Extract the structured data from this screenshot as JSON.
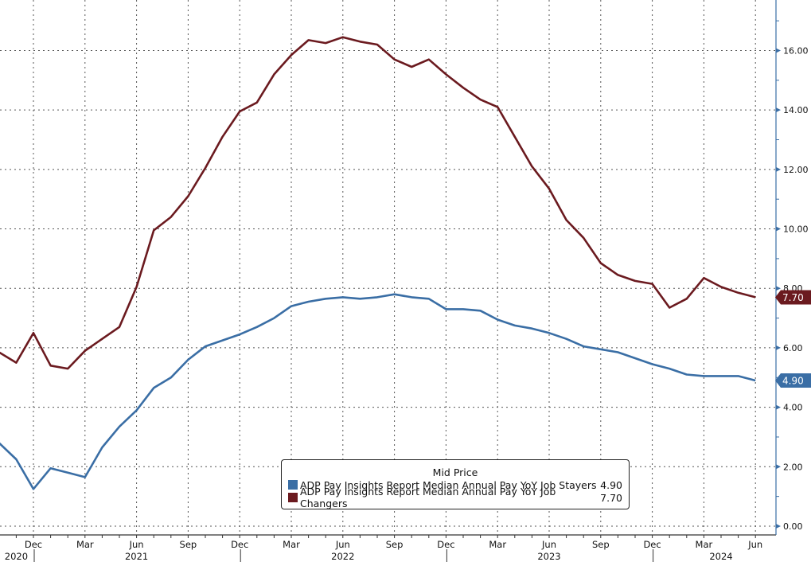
{
  "chart_data": {
    "type": "line",
    "title": "",
    "xlabel": "",
    "ylabel": "",
    "ylim": [
      0,
      17.7
    ],
    "y_ticks": [
      "0.00",
      "2.00",
      "4.00",
      "6.00",
      "8.00",
      "10.00",
      "12.00",
      "14.00",
      "16.00"
    ],
    "y_axis_side": "right",
    "grid": true,
    "x": [
      "2020-10",
      "2020-11",
      "2020-12",
      "2021-01",
      "2021-02",
      "2021-03",
      "2021-04",
      "2021-05",
      "2021-06",
      "2021-07",
      "2021-08",
      "2021-09",
      "2021-10",
      "2021-11",
      "2021-12",
      "2022-01",
      "2022-02",
      "2022-03",
      "2022-04",
      "2022-05",
      "2022-06",
      "2022-07",
      "2022-08",
      "2022-09",
      "2022-10",
      "2022-11",
      "2022-12",
      "2023-01",
      "2023-02",
      "2023-03",
      "2023-04",
      "2023-05",
      "2023-06",
      "2023-07",
      "2023-08",
      "2023-09",
      "2023-10",
      "2023-11",
      "2023-12",
      "2024-01",
      "2024-02",
      "2024-03",
      "2024-04",
      "2024-05",
      "2024-06"
    ],
    "month_ticks": [
      {
        "x": "2020-12",
        "label": "Dec"
      },
      {
        "x": "2021-03",
        "label": "Mar"
      },
      {
        "x": "2021-06",
        "label": "Jun"
      },
      {
        "x": "2021-09",
        "label": "Sep"
      },
      {
        "x": "2021-12",
        "label": "Dec"
      },
      {
        "x": "2022-03",
        "label": "Mar"
      },
      {
        "x": "2022-06",
        "label": "Jun"
      },
      {
        "x": "2022-09",
        "label": "Sep"
      },
      {
        "x": "2022-12",
        "label": "Dec"
      },
      {
        "x": "2023-03",
        "label": "Mar"
      },
      {
        "x": "2023-06",
        "label": "Jun"
      },
      {
        "x": "2023-09",
        "label": "Sep"
      },
      {
        "x": "2023-12",
        "label": "Dec"
      },
      {
        "x": "2024-03",
        "label": "Mar"
      },
      {
        "x": "2024-06",
        "label": "Jun"
      }
    ],
    "year_labels": [
      {
        "x": "2020-11",
        "label": "2020"
      },
      {
        "x": "2021-06",
        "label": "2021"
      },
      {
        "x": "2022-06",
        "label": "2022"
      },
      {
        "x": "2023-06",
        "label": "2023"
      },
      {
        "x": "2024-04",
        "label": "2024"
      }
    ],
    "legend": {
      "title": "Mid Price",
      "placement": "bottom-center"
    },
    "series": [
      {
        "name": "ADP Pay Insights Report Median Annual Pay YoY Job Stayers",
        "last": "4.90",
        "color": "#3a6ea5",
        "values": [
          2.8,
          2.25,
          1.25,
          1.95,
          1.8,
          1.65,
          2.65,
          3.35,
          3.9,
          4.65,
          5.0,
          5.6,
          6.05,
          6.25,
          6.45,
          6.7,
          7.0,
          7.4,
          7.55,
          7.65,
          7.7,
          7.65,
          7.7,
          7.8,
          7.7,
          7.65,
          7.3,
          7.3,
          7.25,
          6.95,
          6.75,
          6.65,
          6.5,
          6.3,
          6.05,
          5.95,
          5.85,
          5.65,
          5.45,
          5.3,
          5.1,
          5.05,
          5.05,
          5.05,
          4.9
        ]
      },
      {
        "name": "ADP Pay Insights Report Median Annual Pay YoY Job Changers",
        "last": "7.70",
        "color": "#6b1a1f",
        "values": [
          5.85,
          5.5,
          6.5,
          5.4,
          5.3,
          5.9,
          6.3,
          6.7,
          8.05,
          9.95,
          10.4,
          11.1,
          12.05,
          13.1,
          13.95,
          14.25,
          15.2,
          15.85,
          16.35,
          16.25,
          16.45,
          16.3,
          16.2,
          15.7,
          15.45,
          15.7,
          15.2,
          14.75,
          14.35,
          14.1,
          13.1,
          12.1,
          11.35,
          10.3,
          9.7,
          8.85,
          8.45,
          8.25,
          8.15,
          7.35,
          7.65,
          8.35,
          8.05,
          7.85,
          7.7
        ]
      }
    ]
  }
}
